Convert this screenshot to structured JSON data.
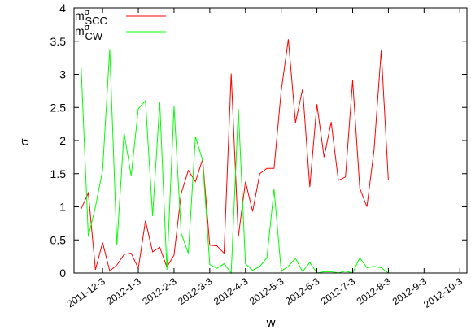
{
  "chart_data": {
    "type": "line",
    "title": "",
    "xlabel": "w",
    "ylabel": "σ",
    "ylim": [
      0,
      4
    ],
    "y_ticks": [
      "0",
      "0.5",
      "1",
      "1.5",
      "2",
      "2.5",
      "3",
      "3.5",
      "4"
    ],
    "x_ticks": [
      "2011-12-3",
      "2012-1-3",
      "2012-2-3",
      "2012-3-3",
      "2012-4-3",
      "2012-5-3",
      "2012-6-3",
      "2012-7-3",
      "2012-8-3",
      "2012-9-3",
      "2012-10-3"
    ],
    "x_tick_positions": [
      3,
      8,
      13,
      18,
      23,
      28,
      33,
      38,
      43,
      48,
      53
    ],
    "x_range": [
      -1,
      54
    ],
    "grid": false,
    "legend_position": "top-left",
    "series": [
      {
        "name_main": "m",
        "name_sup": "σ",
        "name_sub": "SCC",
        "color": "#ff0000",
        "values": [
          0.97,
          1.21,
          0.05,
          0.46,
          0.03,
          0.12,
          0.28,
          0.3,
          0.07,
          0.79,
          0.32,
          0.39,
          0.09,
          0.27,
          1.2,
          1.55,
          1.38,
          1.72,
          0.42,
          0.41,
          0.3,
          3.01,
          0.55,
          1.38,
          0.93,
          1.5,
          1.58,
          1.58,
          2.75,
          3.53,
          2.27,
          2.78,
          1.3,
          2.55,
          1.75,
          2.28,
          1.4,
          1.45,
          2.91,
          1.28,
          1.0,
          1.86,
          3.36,
          1.4
        ]
      },
      {
        "name_main": "m",
        "name_sup": "σ",
        "name_sub": "CW",
        "color": "#00ff00",
        "values": [
          3.1,
          0.55,
          1.0,
          1.55,
          3.38,
          0.42,
          2.12,
          1.47,
          2.48,
          2.6,
          0.86,
          2.58,
          0.05,
          2.52,
          0.6,
          0.3,
          2.06,
          1.7,
          0.13,
          0.07,
          0.14,
          0.0,
          2.48,
          0.14,
          0.04,
          0.1,
          0.23,
          1.27,
          0.03,
          0.1,
          0.22,
          0.02,
          0.16,
          0.0,
          0.02,
          0.02,
          0.0,
          0.03,
          0.0,
          0.23,
          0.08,
          0.1,
          0.08,
          0.0
        ]
      }
    ]
  }
}
